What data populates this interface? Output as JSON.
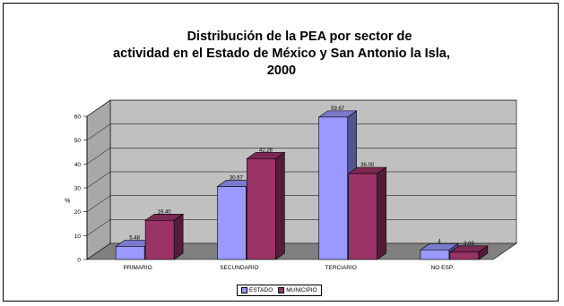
{
  "chart_data": {
    "type": "bar",
    "title_lines": [
      "Distribución de la PEA por sector de",
      "actividad en el Estado de México y San Antonio la Isla,",
      "2000"
    ],
    "categories": [
      "PRIMARIO",
      "SECUNDARIO",
      "TERCIARIO",
      "NO ESP."
    ],
    "series": [
      {
        "name": "ESTADO",
        "values": [
          5.48,
          30.57,
          59.67,
          4.0
        ],
        "value_labels": [
          "5.48",
          "30.57",
          "59.67",
          "4"
        ],
        "color": "#9999ff"
      },
      {
        "name": "MUNICIPIO",
        "values": [
          16.4,
          42.28,
          36.0,
          3.08
        ],
        "value_labels": [
          "16.40",
          "42.28",
          "36.00",
          "3.08"
        ],
        "color": "#993366"
      }
    ],
    "ylabel": "%",
    "ylim": [
      0,
      60
    ],
    "yticks": [
      "0",
      "10",
      "20",
      "30",
      "40",
      "50",
      "60"
    ],
    "grid": true,
    "legend_position": "bottom"
  }
}
